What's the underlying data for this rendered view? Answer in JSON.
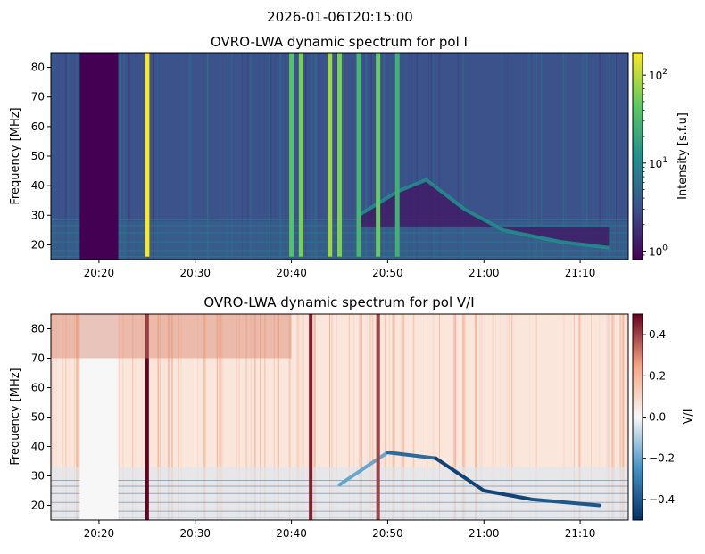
{
  "figure_title": "2026-01-06T20:15:00",
  "chart_data": [
    {
      "type": "heatmap",
      "title": "OVRO-LWA dynamic spectrum for pol I",
      "xlabel": "",
      "ylabel": "Frequency [MHz]",
      "x_range": [
        "20:15",
        "21:15"
      ],
      "x_ticks": [
        "20:20",
        "20:30",
        "20:40",
        "20:50",
        "21:00",
        "21:10"
      ],
      "ylim": [
        15,
        85
      ],
      "y_ticks": [
        20,
        30,
        40,
        50,
        60,
        70,
        80
      ],
      "colormap": "viridis",
      "colorbar": {
        "label": "Intensity [s.f.u]",
        "scale": "log",
        "range": [
          0.8,
          180
        ],
        "tick_labels": [
          "10^0",
          "10^1",
          "10^2"
        ],
        "colors": [
          "#440154",
          "#3b528b",
          "#21918c",
          "#5ec962",
          "#fde725"
        ]
      },
      "features": {
        "data_gap": {
          "start": "20:18",
          "end": "20:22",
          "intensity": 0.8
        },
        "bright_burst_freq_range": [
          16,
          85
        ],
        "bright_bursts": [
          {
            "time": "20:25",
            "intensity": 180
          },
          {
            "time": "20:40",
            "intensity": 40
          },
          {
            "time": "20:41",
            "intensity": 60
          },
          {
            "time": "20:44",
            "intensity": 80
          },
          {
            "time": "20:45",
            "intensity": 60
          },
          {
            "time": "20:47",
            "intensity": 30
          },
          {
            "time": "20:49",
            "intensity": 50
          },
          {
            "time": "20:51",
            "intensity": 25
          }
        ],
        "drifting_burst": [
          {
            "time": "20:47",
            "freq": 30
          },
          {
            "time": "20:51",
            "freq": 38
          },
          {
            "time": "20:54",
            "freq": 42
          },
          {
            "time": "20:58",
            "freq": 32
          },
          {
            "time": "21:02",
            "freq": 25
          },
          {
            "time": "21:08",
            "freq": 21
          },
          {
            "time": "21:13",
            "freq": 19
          }
        ]
      }
    },
    {
      "type": "heatmap",
      "title": "OVRO-LWA dynamic spectrum for pol V/I",
      "xlabel": "",
      "ylabel": "Frequency [MHz]",
      "x_range": [
        "20:15",
        "21:15"
      ],
      "x_ticks": [
        "20:20",
        "20:30",
        "20:40",
        "20:50",
        "21:00",
        "21:10"
      ],
      "ylim": [
        15,
        85
      ],
      "y_ticks": [
        20,
        30,
        40,
        50,
        60,
        70,
        80
      ],
      "colormap": "RdBu_r",
      "colorbar": {
        "label": "V/I",
        "scale": "linear",
        "range": [
          -0.5,
          0.5
        ],
        "ticks": [
          0.4,
          0.2,
          0.0,
          -0.2,
          -0.4
        ],
        "tick_labels": [
          "0.4",
          "0.2",
          "0.0",
          "−0.2",
          "−0.4"
        ],
        "colors": [
          "#053061",
          "#4393c3",
          "#f7f7f7",
          "#f4a582",
          "#67001f"
        ]
      },
      "features": {
        "data_gap": {
          "start": "20:18",
          "end": "20:22",
          "value": 0.0
        },
        "polarized_bursts": [
          {
            "time": "20:25",
            "value": 0.5
          },
          {
            "time": "20:42",
            "value": 0.45
          },
          {
            "time": "20:49",
            "value": 0.4
          }
        ],
        "drifting_burst": [
          {
            "time": "20:45",
            "freq": 27,
            "value": -0.3
          },
          {
            "time": "20:50",
            "freq": 38,
            "value": -0.2
          },
          {
            "time": "20:55",
            "freq": 36,
            "value": -0.35
          },
          {
            "time": "21:00",
            "freq": 25,
            "value": -0.45
          },
          {
            "time": "21:05",
            "freq": 22,
            "value": -0.45
          },
          {
            "time": "21:12",
            "freq": 20,
            "value": -0.4
          }
        ]
      }
    }
  ]
}
